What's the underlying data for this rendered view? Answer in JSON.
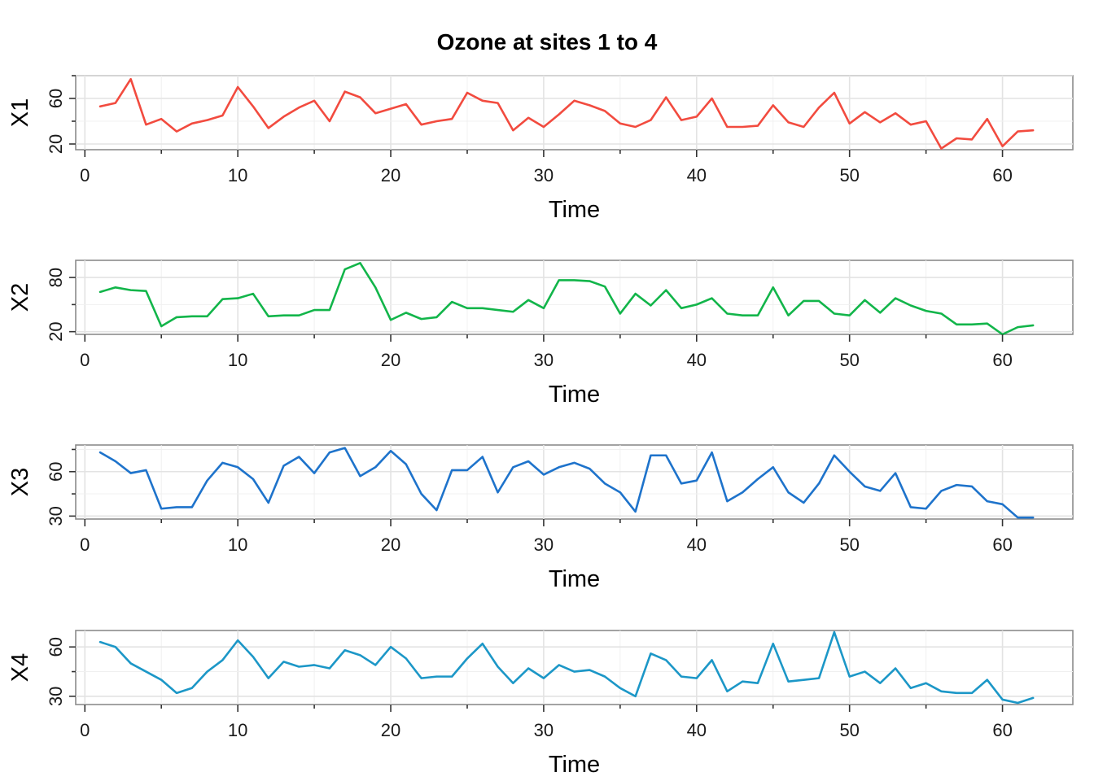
{
  "chart_data": {
    "type": "line",
    "title": "Ozone at sites 1 to 4",
    "xlabel": "Time",
    "xlim": [
      -0.6,
      64.6
    ],
    "x_ticks": [
      0,
      10,
      20,
      30,
      40,
      50,
      60
    ],
    "grid": true,
    "panels": [
      {
        "ylabel": "X1",
        "color": "#F24B3F",
        "ylim": [
          15,
          80
        ],
        "y_ticks": [
          20,
          60
        ],
        "x": [
          1,
          2,
          3,
          4,
          5,
          6,
          7,
          8,
          9,
          10,
          11,
          12,
          13,
          14,
          15,
          16,
          17,
          18,
          19,
          20,
          21,
          22,
          23,
          24,
          25,
          26,
          27,
          28,
          29,
          30,
          31,
          32,
          33,
          34,
          35,
          36,
          37,
          38,
          39,
          40,
          41,
          42,
          43,
          44,
          45,
          46,
          47,
          48,
          49,
          50,
          51,
          52,
          53,
          54,
          55,
          56,
          57,
          58,
          59,
          60,
          61,
          62
        ],
        "values": [
          53,
          56,
          77,
          37,
          42,
          31,
          38,
          41,
          45,
          70,
          53,
          34,
          44,
          52,
          58,
          40,
          66,
          61,
          47,
          51,
          55,
          37,
          40,
          42,
          65,
          58,
          56,
          32,
          43,
          35,
          46,
          58,
          54,
          49,
          38,
          35,
          41,
          61,
          41,
          44,
          60,
          35,
          35,
          36,
          54,
          39,
          35,
          52,
          65,
          38,
          48,
          39,
          47,
          37,
          40,
          16,
          25,
          24,
          42,
          18,
          31,
          32
        ]
      },
      {
        "ylabel": "X2",
        "color": "#12B54A",
        "ylim": [
          17,
          99
        ],
        "y_ticks": [
          20,
          80
        ],
        "x": [
          1,
          2,
          3,
          4,
          5,
          6,
          7,
          8,
          9,
          10,
          11,
          12,
          13,
          14,
          15,
          16,
          17,
          18,
          19,
          20,
          21,
          22,
          23,
          24,
          25,
          26,
          27,
          28,
          29,
          30,
          31,
          32,
          33,
          34,
          35,
          36,
          37,
          38,
          39,
          40,
          41,
          42,
          43,
          44,
          45,
          46,
          47,
          48,
          49,
          50,
          51,
          52,
          53,
          54,
          55,
          56,
          57,
          58,
          59,
          60,
          61,
          62
        ],
        "values": [
          64,
          69,
          66,
          65,
          26,
          36,
          37,
          37,
          56,
          57,
          62,
          37,
          38,
          38,
          44,
          44,
          89,
          96,
          69,
          33,
          41,
          34,
          36,
          53,
          46,
          46,
          44,
          42,
          55,
          46,
          77,
          77,
          76,
          70,
          40,
          62,
          49,
          66,
          46,
          50,
          57,
          40,
          38,
          38,
          69,
          38,
          54,
          54,
          40,
          38,
          55,
          41,
          57,
          49,
          43,
          40,
          28,
          28,
          29,
          17,
          25,
          27
        ]
      },
      {
        "ylabel": "X3",
        "color": "#1E73CB",
        "ylim": [
          28,
          78
        ],
        "y_ticks": [
          30,
          60
        ],
        "x": [
          1,
          2,
          3,
          4,
          5,
          6,
          7,
          8,
          9,
          10,
          11,
          12,
          13,
          14,
          15,
          16,
          17,
          18,
          19,
          20,
          21,
          22,
          23,
          24,
          25,
          26,
          27,
          28,
          29,
          30,
          31,
          32,
          33,
          34,
          35,
          36,
          37,
          38,
          39,
          40,
          41,
          42,
          43,
          44,
          45,
          46,
          47,
          48,
          49,
          50,
          51,
          52,
          53,
          54,
          55,
          56,
          57,
          58,
          59,
          60,
          61,
          62
        ],
        "values": [
          73,
          67,
          59,
          61,
          35,
          36,
          36,
          54,
          66,
          63,
          55,
          39,
          64,
          70,
          59,
          73,
          76,
          57,
          63,
          74,
          65,
          45,
          34,
          61,
          61,
          70,
          46,
          63,
          67,
          58,
          63,
          66,
          62,
          52,
          46,
          33,
          71,
          71,
          52,
          54,
          73,
          40,
          46,
          55,
          63,
          46,
          39,
          52,
          71,
          60,
          50,
          47,
          59,
          36,
          35,
          47,
          51,
          50,
          40,
          38,
          29,
          29
        ]
      },
      {
        "ylabel": "X4",
        "color": "#1C97C7",
        "ylim": [
          25,
          70
        ],
        "y_ticks": [
          30,
          60
        ],
        "x": [
          1,
          2,
          3,
          4,
          5,
          6,
          7,
          8,
          9,
          10,
          11,
          12,
          13,
          14,
          15,
          16,
          17,
          18,
          19,
          20,
          21,
          22,
          23,
          24,
          25,
          26,
          27,
          28,
          29,
          30,
          31,
          32,
          33,
          34,
          35,
          36,
          37,
          38,
          39,
          40,
          41,
          42,
          43,
          44,
          45,
          46,
          47,
          48,
          49,
          50,
          51,
          52,
          53,
          54,
          55,
          56,
          57,
          58,
          59,
          60,
          61,
          62
        ],
        "values": [
          63,
          60,
          50,
          45,
          40,
          32,
          35,
          45,
          52,
          64,
          54,
          41,
          51,
          48,
          49,
          47,
          58,
          55,
          49,
          60,
          53,
          41,
          42,
          42,
          53,
          62,
          48,
          38,
          47,
          41,
          49,
          45,
          46,
          42,
          35,
          30,
          56,
          52,
          42,
          41,
          52,
          33,
          39,
          38,
          62,
          39,
          40,
          41,
          69,
          42,
          45,
          38,
          47,
          35,
          38,
          33,
          32,
          32,
          40,
          28,
          26,
          29
        ]
      }
    ]
  }
}
